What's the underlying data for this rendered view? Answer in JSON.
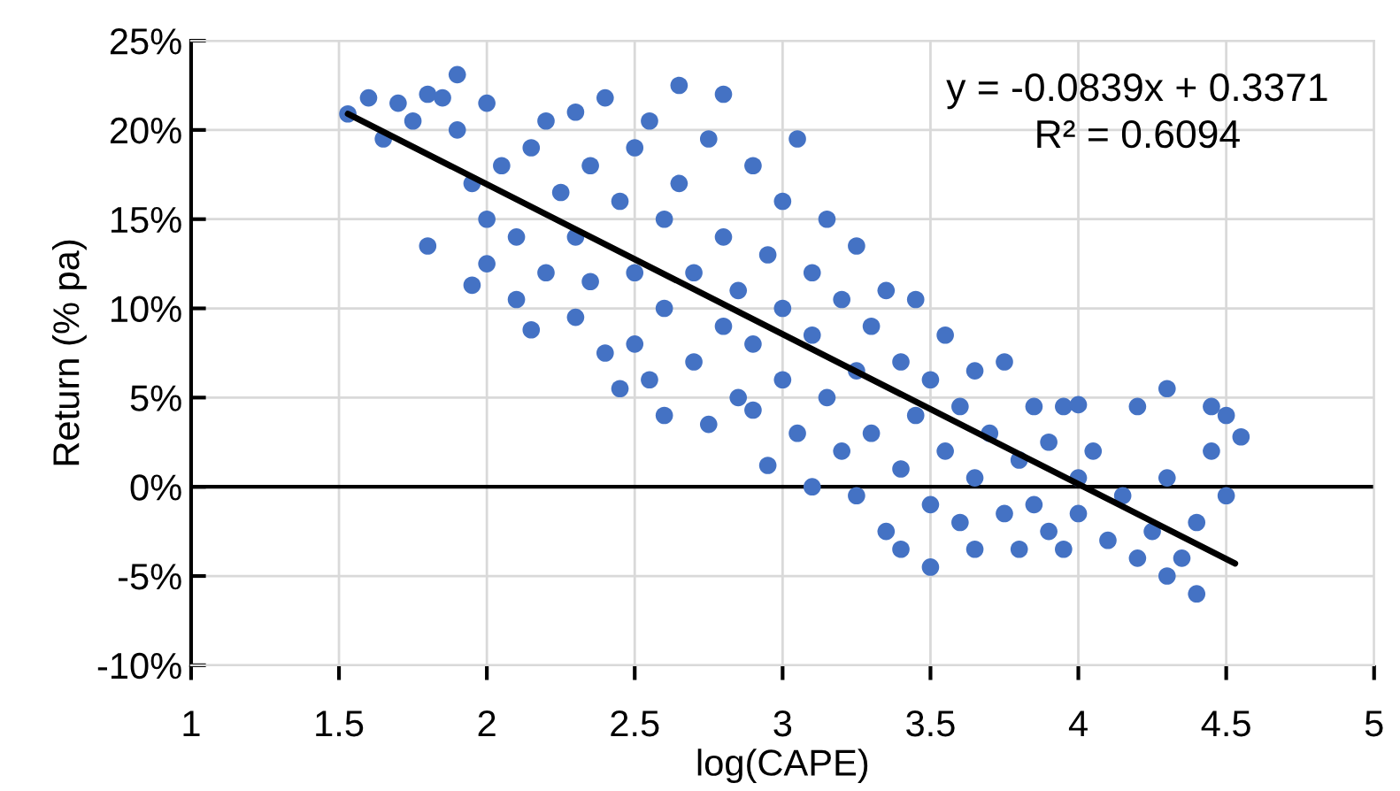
{
  "chart_data": {
    "type": "scatter",
    "xlabel": "log(CAPE)",
    "ylabel": "Return (% pa)",
    "annotations": [
      "y = -0.0839x + 0.3371",
      "R² = 0.6094"
    ],
    "xlim": [
      1,
      5
    ],
    "xticks": [
      1,
      1.5,
      2,
      2.5,
      3,
      3.5,
      4,
      4.5,
      5
    ],
    "ylim": [
      -10,
      25
    ],
    "yticks": [
      {
        "value": -10,
        "label": "-10%"
      },
      {
        "value": -5,
        "label": "-5%"
      },
      {
        "value": 0,
        "label": "0%"
      },
      {
        "value": 5,
        "label": "5%"
      },
      {
        "value": 10,
        "label": "10%"
      },
      {
        "value": 15,
        "label": "15%"
      },
      {
        "value": 20,
        "label": "20%"
      },
      {
        "value": 25,
        "label": "25%"
      }
    ],
    "grid": true,
    "legend": false,
    "marker": "circle",
    "ref_lines": [
      {
        "axis": "y",
        "value": 0,
        "color": "#000000"
      }
    ],
    "series": [
      {
        "color": "#4472c4",
        "x": [
          1.53,
          1.6,
          1.65,
          1.7,
          1.75,
          1.8,
          1.8,
          1.85,
          1.9,
          1.9,
          1.95,
          1.95,
          2.0,
          2.0,
          2.0,
          2.05,
          2.1,
          2.1,
          2.15,
          2.15,
          2.2,
          2.2,
          2.25,
          2.3,
          2.3,
          2.3,
          2.35,
          2.35,
          2.4,
          2.4,
          2.45,
          2.45,
          2.5,
          2.5,
          2.5,
          2.55,
          2.55,
          2.6,
          2.6,
          2.6,
          2.65,
          2.65,
          2.7,
          2.7,
          2.75,
          2.75,
          2.8,
          2.8,
          2.8,
          2.85,
          2.85,
          2.9,
          2.9,
          2.9,
          2.95,
          2.95,
          3.0,
          3.0,
          3.0,
          3.05,
          3.05,
          3.1,
          3.1,
          3.1,
          3.15,
          3.15,
          3.2,
          3.2,
          3.25,
          3.25,
          3.25,
          3.3,
          3.3,
          3.35,
          3.35,
          3.4,
          3.4,
          3.4,
          3.45,
          3.45,
          3.5,
          3.5,
          3.5,
          3.55,
          3.55,
          3.6,
          3.6,
          3.65,
          3.65,
          3.65,
          3.7,
          3.75,
          3.75,
          3.8,
          3.8,
          3.85,
          3.85,
          3.9,
          3.9,
          3.95,
          3.95,
          4.0,
          4.0,
          4.0,
          4.05,
          4.1,
          4.15,
          4.2,
          4.2,
          4.25,
          4.3,
          4.3,
          4.3,
          4.35,
          4.4,
          4.4,
          4.45,
          4.45,
          4.5,
          4.5,
          4.55
        ],
        "values": [
          20.9,
          21.8,
          19.5,
          21.5,
          20.5,
          22,
          13.5,
          21.8,
          23.1,
          20,
          17,
          11.3,
          21.5,
          15,
          12.5,
          18,
          14,
          10.5,
          19,
          8.8,
          20.5,
          12,
          16.5,
          21,
          14,
          9.5,
          18,
          11.5,
          21.8,
          7.5,
          16,
          5.5,
          19,
          12,
          8,
          20.5,
          6,
          15,
          10,
          4,
          22.5,
          17,
          12,
          7,
          19.5,
          3.5,
          22,
          14,
          9,
          11,
          5,
          18,
          8,
          4.3,
          13,
          1.2,
          16,
          10,
          6,
          19.5,
          3,
          12,
          8.5,
          0,
          15,
          5,
          10.5,
          2,
          13.5,
          6.5,
          -0.5,
          9,
          3,
          11,
          -2.5,
          7,
          1,
          -3.5,
          10.5,
          4,
          6,
          -1,
          -4.5,
          8.5,
          2,
          4.5,
          -2,
          6.5,
          0.5,
          -3.5,
          3,
          7,
          -1.5,
          1.5,
          -3.5,
          4.5,
          -1,
          2.5,
          -2.5,
          4.5,
          -3.5,
          4.6,
          0.5,
          -1.5,
          2,
          -3,
          -0.5,
          4.5,
          -4,
          -2.5,
          5.5,
          -5,
          0.5,
          -4,
          -6,
          -2,
          2,
          4.5,
          -0.5,
          4,
          2.8
        ]
      },
      {
        "type": "line",
        "color": "#000000",
        "marker": "none",
        "x": [
          1.53,
          4.53
        ],
        "values": [
          20.9,
          -4.3
        ]
      }
    ]
  }
}
